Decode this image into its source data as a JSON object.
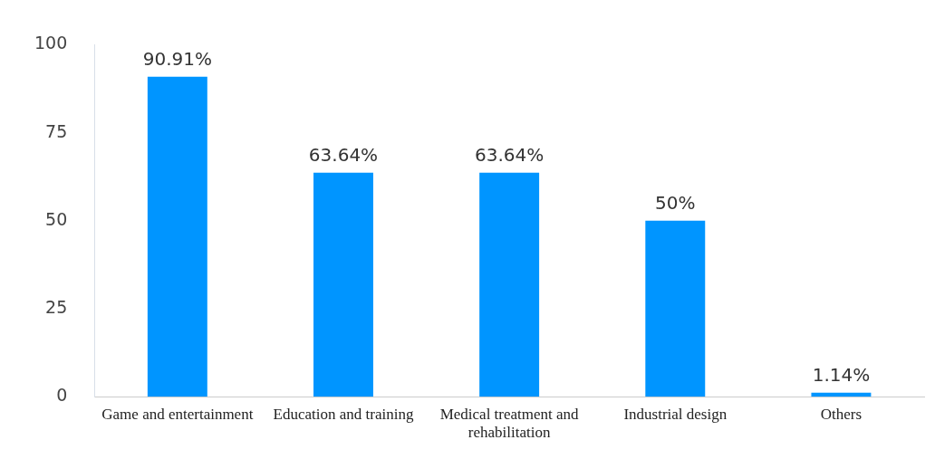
{
  "chart_data": {
    "type": "bar",
    "categories": [
      "Game and entertainment",
      "Education and training",
      "Medical treatment and rehabilitation",
      "Industrial design",
      "Others"
    ],
    "values": [
      90.91,
      63.64,
      63.64,
      50,
      1.14
    ],
    "value_labels": [
      "90.91%",
      "63.64%",
      "63.64%",
      "50%",
      "1.14%"
    ],
    "color": "#0095ff",
    "ylim": [
      0,
      100
    ],
    "yticks": [
      0,
      25,
      50,
      75,
      100
    ],
    "grid": false,
    "legend": false
  }
}
